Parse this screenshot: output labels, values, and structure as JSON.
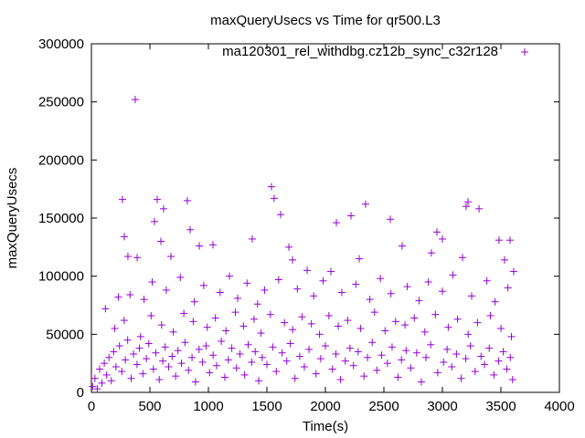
{
  "chart_data": {
    "type": "scatter",
    "title": "maxQueryUsecs vs Time for qr500.L3",
    "xlabel": "Time(s)",
    "ylabel": "maxQueryUsecs",
    "xlim": [
      0,
      4000
    ],
    "ylim": [
      0,
      300000
    ],
    "xticks": [
      "0",
      "500",
      "1000",
      "1500",
      "2000",
      "2500",
      "3000",
      "3500",
      "4000"
    ],
    "yticks": [
      "0",
      "50000",
      "100000",
      "150000",
      "200000",
      "250000",
      "300000"
    ],
    "grid": false,
    "legend_position": "top-right",
    "series": [
      {
        "name": "ma120301_rel_withdbg.cz12b_sync_c32r128",
        "color": "#9400d3",
        "marker": "plus",
        "points": [
          [
            375,
            252000
          ],
          [
            265,
            166000
          ],
          [
            562,
            166000
          ],
          [
            617,
            158000
          ],
          [
            820,
            165000
          ],
          [
            1539,
            177000
          ],
          [
            1562,
            167000
          ],
          [
            1617,
            153000
          ],
          [
            2343,
            162000
          ],
          [
            2219,
            152000
          ],
          [
            2094,
            146000
          ],
          [
            2555,
            149000
          ],
          [
            2953,
            138000
          ],
          [
            3203,
            160000
          ],
          [
            3219,
            164000
          ],
          [
            3313,
            158000
          ],
          [
            281,
            134000
          ],
          [
            1375,
            132000
          ],
          [
            3000,
            132000
          ],
          [
            3484,
            131000
          ],
          [
            3578,
            131000
          ],
          [
            844,
            140000
          ],
          [
            539,
            147000
          ],
          [
            594,
            130000
          ],
          [
            312,
            117000
          ],
          [
            391,
            116000
          ],
          [
            680,
            117000
          ],
          [
            922,
            126000
          ],
          [
            1039,
            127000
          ],
          [
            1688,
            125000
          ],
          [
            1719,
            114000
          ],
          [
            1844,
            105000
          ],
          [
            2047,
            104000
          ],
          [
            2289,
            115000
          ],
          [
            2656,
            126000
          ],
          [
            2906,
            120000
          ],
          [
            3172,
            116000
          ],
          [
            3531,
            114000
          ],
          [
            3609,
            104000
          ],
          [
            120,
            72000
          ],
          [
            230,
            82000
          ],
          [
            330,
            84000
          ],
          [
            450,
            80000
          ],
          [
            520,
            95000
          ],
          [
            640,
            88000
          ],
          [
            760,
            99000
          ],
          [
            880,
            78000
          ],
          [
            960,
            92000
          ],
          [
            1100,
            86000
          ],
          [
            1180,
            100000
          ],
          [
            1250,
            81000
          ],
          [
            1330,
            94000
          ],
          [
            1420,
            76000
          ],
          [
            1480,
            88000
          ],
          [
            1600,
            97000
          ],
          [
            1760,
            89000
          ],
          [
            1900,
            83000
          ],
          [
            1980,
            96000
          ],
          [
            2140,
            86000
          ],
          [
            2260,
            93000
          ],
          [
            2380,
            80000
          ],
          [
            2470,
            98000
          ],
          [
            2560,
            85000
          ],
          [
            2700,
            91000
          ],
          [
            2800,
            79000
          ],
          [
            2880,
            95000
          ],
          [
            3000,
            87000
          ],
          [
            3090,
            101000
          ],
          [
            3250,
            83000
          ],
          [
            3380,
            96000
          ],
          [
            3450,
            78000
          ],
          [
            3560,
            90000
          ],
          [
            200,
            55000
          ],
          [
            280,
            62000
          ],
          [
            420,
            48000
          ],
          [
            510,
            66000
          ],
          [
            600,
            58000
          ],
          [
            700,
            52000
          ],
          [
            790,
            68000
          ],
          [
            870,
            61000
          ],
          [
            990,
            56000
          ],
          [
            1060,
            64000
          ],
          [
            1150,
            53000
          ],
          [
            1230,
            69000
          ],
          [
            1300,
            57000
          ],
          [
            1390,
            63000
          ],
          [
            1450,
            51000
          ],
          [
            1530,
            67000
          ],
          [
            1650,
            60000
          ],
          [
            1720,
            54000
          ],
          [
            1800,
            65000
          ],
          [
            1880,
            59000
          ],
          [
            1950,
            50000
          ],
          [
            2030,
            66000
          ],
          [
            2110,
            57000
          ],
          [
            2190,
            62000
          ],
          [
            2300,
            55000
          ],
          [
            2420,
            69000
          ],
          [
            2510,
            53000
          ],
          [
            2600,
            61000
          ],
          [
            2680,
            58000
          ],
          [
            2760,
            64000
          ],
          [
            2850,
            52000
          ],
          [
            2940,
            67000
          ],
          [
            3050,
            56000
          ],
          [
            3130,
            63000
          ],
          [
            3220,
            50000
          ],
          [
            3300,
            60000
          ],
          [
            3410,
            66000
          ],
          [
            3500,
            55000
          ],
          [
            3590,
            48000
          ],
          [
            10,
            5000
          ],
          [
            30,
            12000
          ],
          [
            50,
            3000
          ],
          [
            70,
            20000
          ],
          [
            90,
            8000
          ],
          [
            110,
            25000
          ],
          [
            130,
            15000
          ],
          [
            150,
            30000
          ],
          [
            170,
            10000
          ],
          [
            190,
            35000
          ],
          [
            210,
            22000
          ],
          [
            240,
            40000
          ],
          [
            260,
            18000
          ],
          [
            290,
            28000
          ],
          [
            310,
            45000
          ],
          [
            340,
            12000
          ],
          [
            360,
            33000
          ],
          [
            390,
            24000
          ],
          [
            410,
            38000
          ],
          [
            440,
            16000
          ],
          [
            470,
            29000
          ],
          [
            490,
            42000
          ],
          [
            530,
            20000
          ],
          [
            550,
            34000
          ],
          [
            580,
            11000
          ],
          [
            610,
            27000
          ],
          [
            630,
            39000
          ],
          [
            660,
            22000
          ],
          [
            690,
            31000
          ],
          [
            720,
            14000
          ],
          [
            740,
            36000
          ],
          [
            770,
            25000
          ],
          [
            800,
            43000
          ],
          [
            830,
            19000
          ],
          [
            860,
            30000
          ],
          [
            890,
            9000
          ],
          [
            920,
            37000
          ],
          [
            950,
            26000
          ],
          [
            980,
            40000
          ],
          [
            1010,
            17000
          ],
          [
            1040,
            32000
          ],
          [
            1070,
            23000
          ],
          [
            1110,
            44000
          ],
          [
            1140,
            13000
          ],
          [
            1170,
            28000
          ],
          [
            1200,
            38000
          ],
          [
            1240,
            21000
          ],
          [
            1270,
            33000
          ],
          [
            1310,
            15000
          ],
          [
            1340,
            41000
          ],
          [
            1370,
            26000
          ],
          [
            1400,
            35000
          ],
          [
            1430,
            10000
          ],
          [
            1460,
            30000
          ],
          [
            1500,
            24000
          ],
          [
            1550,
            39000
          ],
          [
            1580,
            18000
          ],
          [
            1630,
            34000
          ],
          [
            1670,
            27000
          ],
          [
            1700,
            42000
          ],
          [
            1740,
            12000
          ],
          [
            1780,
            31000
          ],
          [
            1820,
            22000
          ],
          [
            1860,
            37000
          ],
          [
            1920,
            16000
          ],
          [
            1960,
            29000
          ],
          [
            2000,
            40000
          ],
          [
            2060,
            20000
          ],
          [
            2090,
            33000
          ],
          [
            2130,
            11000
          ],
          [
            2170,
            27000
          ],
          [
            2210,
            38000
          ],
          [
            2240,
            23000
          ],
          [
            2280,
            35000
          ],
          [
            2330,
            14000
          ],
          [
            2360,
            30000
          ],
          [
            2400,
            43000
          ],
          [
            2440,
            19000
          ],
          [
            2480,
            32000
          ],
          [
            2530,
            25000
          ],
          [
            2570,
            39000
          ],
          [
            2620,
            13000
          ],
          [
            2650,
            28000
          ],
          [
            2690,
            36000
          ],
          [
            2730,
            21000
          ],
          [
            2780,
            34000
          ],
          [
            2820,
            9000
          ],
          [
            2860,
            30000
          ],
          [
            2900,
            41000
          ],
          [
            2960,
            17000
          ],
          [
            3010,
            26000
          ],
          [
            3040,
            37000
          ],
          [
            3080,
            22000
          ],
          [
            3120,
            33000
          ],
          [
            3160,
            12000
          ],
          [
            3200,
            29000
          ],
          [
            3240,
            40000
          ],
          [
            3280,
            18000
          ],
          [
            3330,
            31000
          ],
          [
            3360,
            24000
          ],
          [
            3400,
            38000
          ],
          [
            3440,
            15000
          ],
          [
            3480,
            27000
          ],
          [
            3520,
            35000
          ],
          [
            3550,
            20000
          ],
          [
            3580,
            30000
          ],
          [
            3600,
            11000
          ]
        ]
      }
    ]
  }
}
